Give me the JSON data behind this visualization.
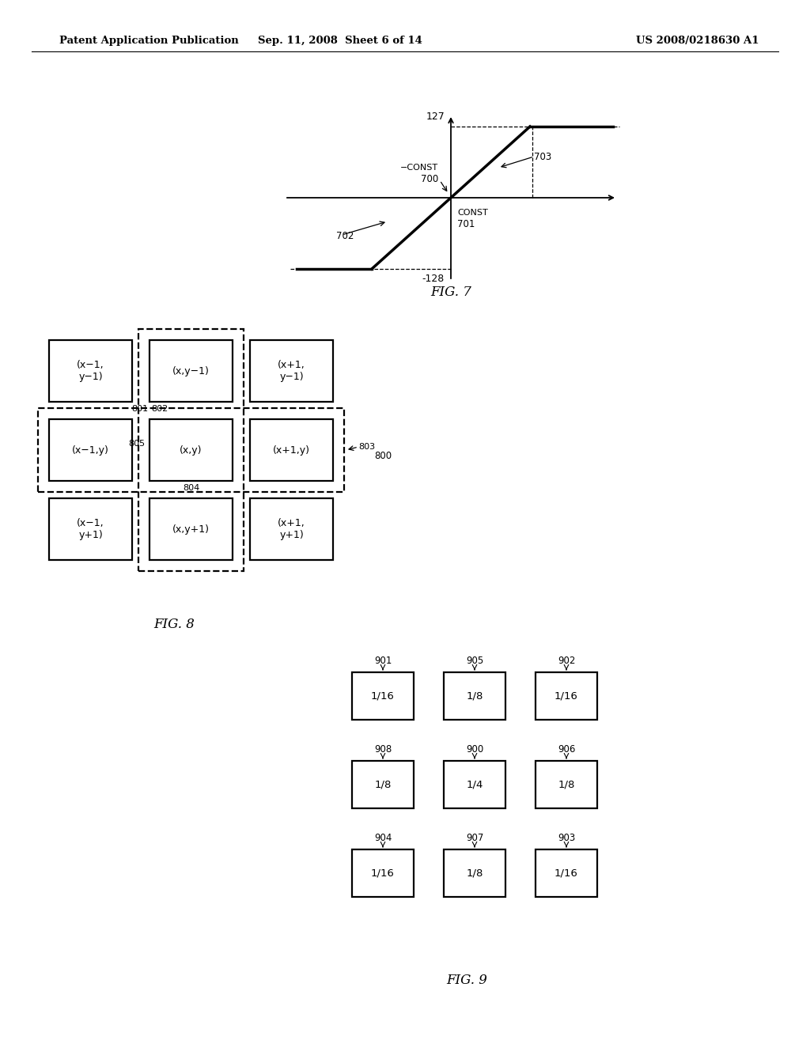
{
  "bg_color": "#ffffff",
  "header_left": "Patent Application Publication",
  "header_mid": "Sep. 11, 2008  Sheet 6 of 14",
  "header_right": "US 2008/0218630 A1",
  "fig7_title": "FIG. 7",
  "fig8_title": "FIG. 8",
  "fig9_title": "FIG. 9",
  "fig8_cells": [
    {
      "label": "(x−1,\ny−1)",
      "col": 0,
      "row": 0,
      "shaded": false
    },
    {
      "label": "(x,y−1)",
      "col": 1,
      "row": 0,
      "shaded": true
    },
    {
      "label": "(x+1,\ny−1)",
      "col": 2,
      "row": 0,
      "shaded": false
    },
    {
      "label": "(x−1,y)",
      "col": 0,
      "row": 1,
      "shaded": true
    },
    {
      "label": "(x,y)",
      "col": 1,
      "row": 1,
      "shaded": true
    },
    {
      "label": "(x+1,y)",
      "col": 2,
      "row": 1,
      "shaded": true
    },
    {
      "label": "(x−1,\ny+1)",
      "col": 0,
      "row": 2,
      "shaded": false
    },
    {
      "label": "(x,y+1)",
      "col": 1,
      "row": 2,
      "shaded": true
    },
    {
      "label": "(x+1,\ny+1)",
      "col": 2,
      "row": 2,
      "shaded": false
    }
  ],
  "fig9_grid": [
    [
      {
        "val": "1/16",
        "id": "901"
      },
      {
        "val": "1/8",
        "id": "905"
      },
      {
        "val": "1/16",
        "id": "902"
      }
    ],
    [
      {
        "val": "1/8",
        "id": "908"
      },
      {
        "val": "1/4",
        "id": "900"
      },
      {
        "val": "1/8",
        "id": "906"
      }
    ],
    [
      {
        "val": "1/16",
        "id": "904"
      },
      {
        "val": "1/8",
        "id": "907"
      },
      {
        "val": "1/16",
        "id": "903"
      }
    ]
  ]
}
